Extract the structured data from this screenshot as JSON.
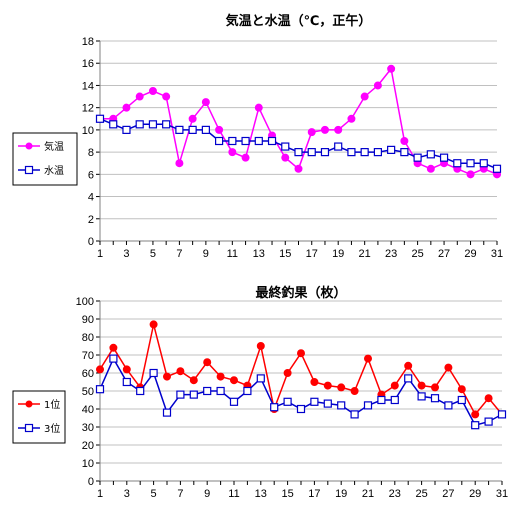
{
  "chart_data": [
    {
      "type": "line",
      "title": "気温と水温（℃，正午）",
      "xlabel": "",
      "ylabel": "",
      "x": [
        1,
        2,
        3,
        4,
        5,
        6,
        7,
        8,
        9,
        10,
        11,
        12,
        13,
        14,
        15,
        16,
        17,
        18,
        19,
        20,
        21,
        22,
        23,
        24,
        25,
        26,
        27,
        28,
        29,
        30,
        31
      ],
      "x_ticks": [
        1,
        3,
        5,
        7,
        9,
        11,
        13,
        15,
        17,
        19,
        21,
        23,
        25,
        27,
        29,
        31
      ],
      "ylim": [
        0,
        18
      ],
      "y_ticks": [
        0,
        2,
        4,
        6,
        8,
        10,
        12,
        14,
        16,
        18
      ],
      "grid": true,
      "legend_position": "left",
      "series": [
        {
          "name": "気温",
          "color": "#ff00ff",
          "marker": "circle-filled",
          "values": [
            11.0,
            11.0,
            12.0,
            13.0,
            13.5,
            13.0,
            7.0,
            11.0,
            12.5,
            10.0,
            8.0,
            7.5,
            12.0,
            9.5,
            7.5,
            6.5,
            9.8,
            10.0,
            10.0,
            11.0,
            13.0,
            14.0,
            15.5,
            9.0,
            7.0,
            6.5,
            7.0,
            6.5,
            6.0,
            6.5,
            6.0
          ]
        },
        {
          "name": "水温",
          "color": "#0000cc",
          "marker": "square-open",
          "values": [
            11.0,
            10.5,
            10.0,
            10.5,
            10.5,
            10.5,
            10.0,
            10.0,
            10.0,
            9.0,
            9.0,
            9.0,
            9.0,
            9.0,
            8.5,
            8.0,
            8.0,
            8.0,
            8.5,
            8.0,
            8.0,
            8.0,
            8.2,
            8.0,
            7.5,
            7.8,
            7.5,
            7.0,
            7.0,
            7.0,
            6.5
          ]
        }
      ]
    },
    {
      "type": "line",
      "title": "最終釣果（枚）",
      "xlabel": "",
      "ylabel": "",
      "x": [
        1,
        2,
        3,
        4,
        5,
        6,
        7,
        8,
        9,
        10,
        11,
        12,
        13,
        14,
        15,
        16,
        17,
        18,
        19,
        20,
        21,
        22,
        23,
        24,
        25,
        26,
        27,
        28,
        29,
        30,
        31
      ],
      "x_ticks": [
        1,
        3,
        5,
        7,
        9,
        11,
        13,
        15,
        17,
        19,
        21,
        23,
        25,
        27,
        29,
        31
      ],
      "ylim": [
        0,
        100
      ],
      "y_ticks": [
        0,
        10,
        20,
        30,
        40,
        50,
        60,
        70,
        80,
        90,
        100
      ],
      "grid": true,
      "legend_position": "left",
      "series": [
        {
          "name": "1位",
          "color": "#ff0000",
          "marker": "circle-filled",
          "values": [
            62,
            74,
            62,
            52,
            87,
            58,
            61,
            56,
            66,
            58,
            56,
            53,
            75,
            40,
            60,
            71,
            55,
            53,
            52,
            50,
            68,
            48,
            53,
            64,
            53,
            52,
            63,
            51,
            37,
            46,
            37
          ]
        },
        {
          "name": "3位",
          "color": "#0000cc",
          "marker": "square-open",
          "values": [
            51,
            68,
            55,
            50,
            60,
            38,
            48,
            48,
            50,
            50,
            44,
            50,
            57,
            41,
            44,
            40,
            44,
            43,
            42,
            37,
            42,
            45,
            45,
            57,
            47,
            46,
            42,
            45,
            31,
            33,
            37
          ]
        }
      ]
    }
  ]
}
